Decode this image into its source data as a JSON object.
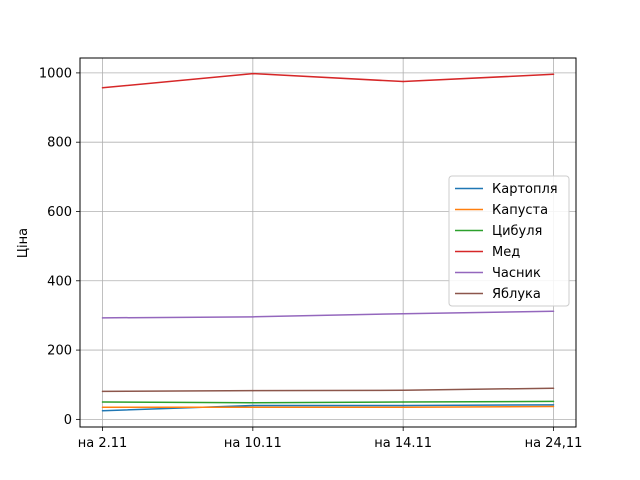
{
  "chart_data": {
    "type": "line",
    "title": "",
    "xlabel": "",
    "ylabel": "Ціна",
    "categories": [
      "на 2.11",
      "на 10.11",
      "на 14.11",
      "на 24,11"
    ],
    "ylim": [
      -22,
      1043
    ],
    "yticks": [
      0,
      200,
      400,
      600,
      800,
      1000
    ],
    "grid": true,
    "legend_position": "center-right",
    "series": [
      {
        "name": "Картопля",
        "color": "#1f77b4",
        "values": [
          25,
          40,
          40,
          42
        ]
      },
      {
        "name": "Капуста",
        "color": "#ff7f0e",
        "values": [
          35,
          35,
          35,
          37
        ]
      },
      {
        "name": "Цибуля",
        "color": "#2ca02c",
        "values": [
          50,
          48,
          50,
          52
        ]
      },
      {
        "name": "Мед",
        "color": "#d62728",
        "values": [
          957,
          998,
          975,
          996
        ]
      },
      {
        "name": "Часник",
        "color": "#9467bd",
        "values": [
          293,
          296,
          305,
          312
        ]
      },
      {
        "name": "Яблука",
        "color": "#8c564b",
        "values": [
          81,
          83,
          84,
          90
        ]
      }
    ]
  }
}
